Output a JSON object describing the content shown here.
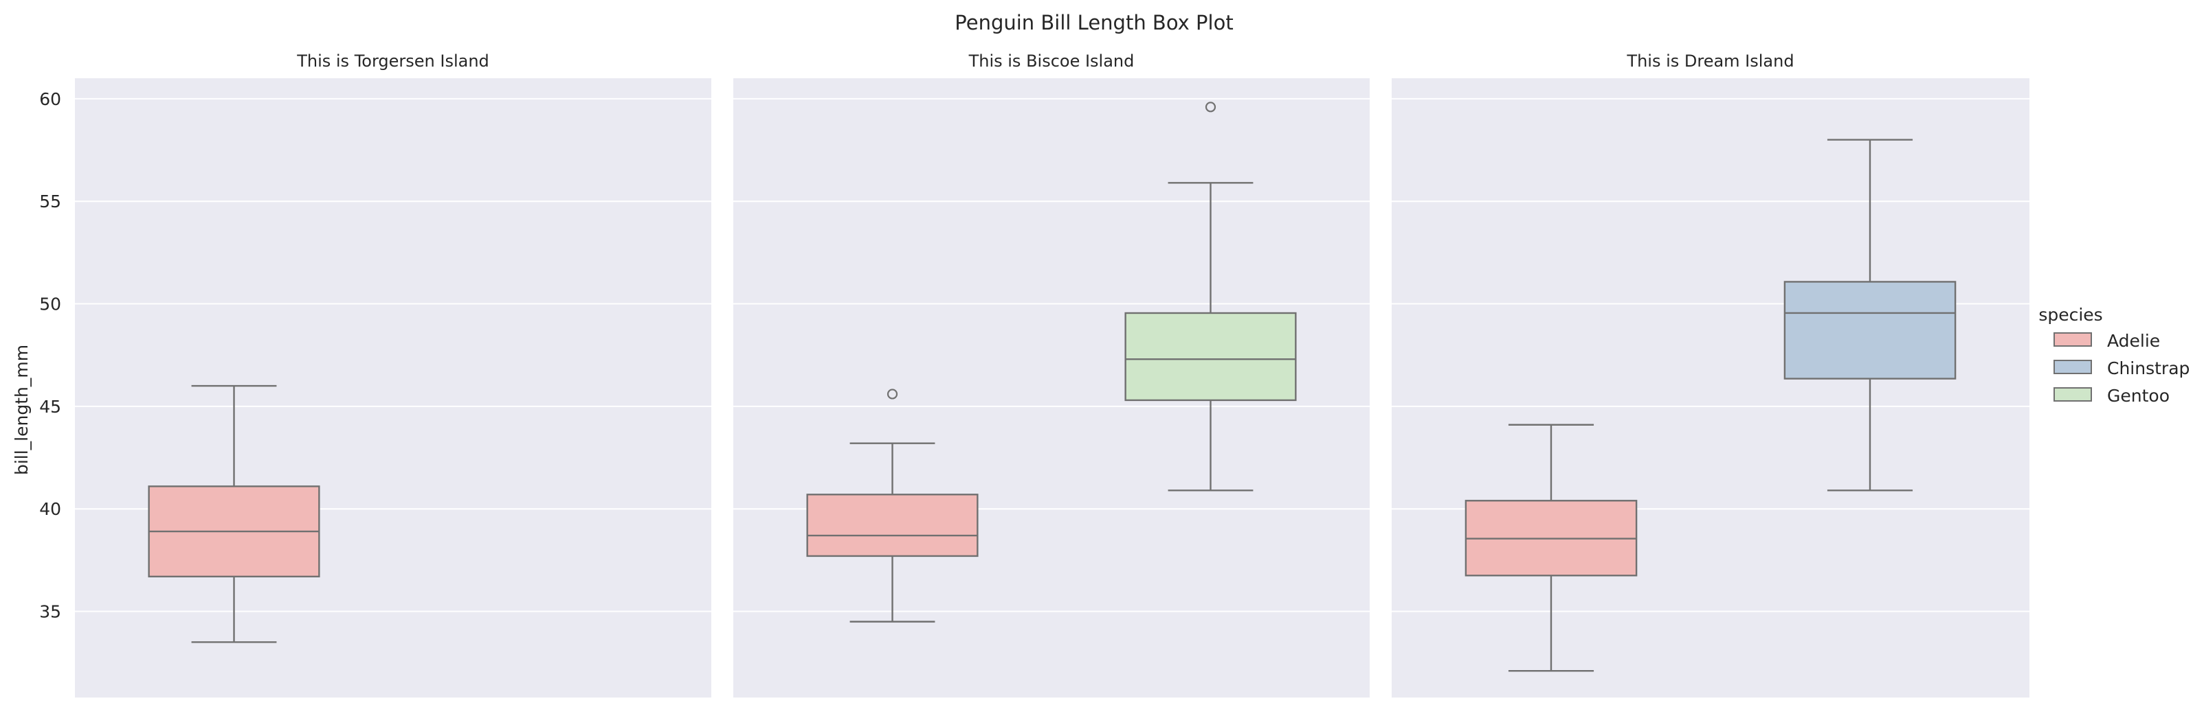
{
  "chart_data": {
    "type": "box",
    "title": "Penguin Bill Length Box Plot",
    "ylabel": "bill_length_mm",
    "xlabel": "",
    "ylim": [
      30.8,
      61.0
    ],
    "yticks": [
      35,
      40,
      45,
      50,
      55,
      60
    ],
    "grid": true,
    "legend": {
      "title": "species",
      "placement": "right",
      "entries": [
        {
          "name": "Adelie",
          "color": "#f1b9b7"
        },
        {
          "name": "Chinstrap",
          "color": "#b7c9dc"
        },
        {
          "name": "Gentoo",
          "color": "#cfe6c9"
        }
      ]
    },
    "colors": {
      "panel_bg": "#eaeaf2",
      "grid": "#ffffff",
      "box_edge": "#707070"
    },
    "facets": [
      {
        "title": "This is Torgersen Island",
        "boxes": [
          {
            "species": "Adelie",
            "slot": 0,
            "whisker_low": 33.5,
            "q1": 36.7,
            "median": 38.9,
            "q3": 41.1,
            "whisker_high": 46.0,
            "outliers": []
          }
        ]
      },
      {
        "title": "This is Biscoe Island",
        "boxes": [
          {
            "species": "Adelie",
            "slot": 0,
            "whisker_low": 34.5,
            "q1": 37.7,
            "median": 38.7,
            "q3": 40.7,
            "whisker_high": 43.2,
            "outliers": [
              45.6
            ]
          },
          {
            "species": "Gentoo",
            "slot": 1,
            "whisker_low": 40.9,
            "q1": 45.3,
            "median": 47.3,
            "q3": 49.55,
            "whisker_high": 55.9,
            "outliers": [
              59.6
            ]
          }
        ]
      },
      {
        "title": "This is Dream Island",
        "boxes": [
          {
            "species": "Adelie",
            "slot": 0,
            "whisker_low": 32.1,
            "q1": 36.75,
            "median": 38.55,
            "q3": 40.4,
            "whisker_high": 44.1,
            "outliers": []
          },
          {
            "species": "Chinstrap",
            "slot": 1,
            "whisker_low": 40.9,
            "q1": 46.35,
            "median": 49.55,
            "q3": 51.075,
            "whisker_high": 58.0,
            "outliers": []
          }
        ]
      }
    ]
  }
}
